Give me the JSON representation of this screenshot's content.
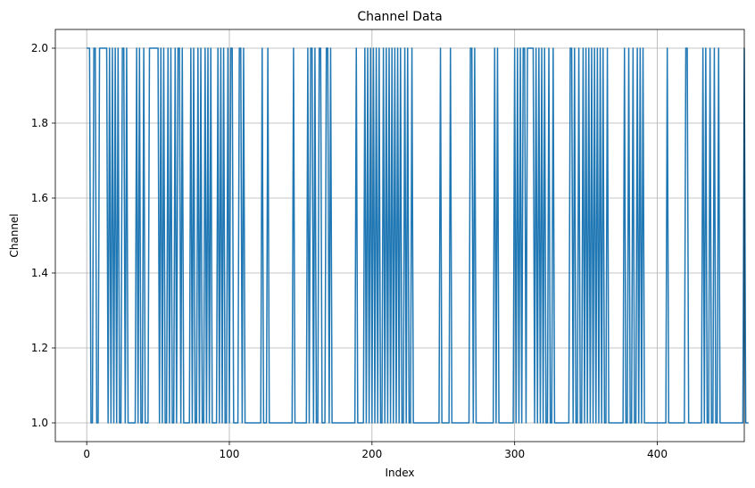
{
  "chart_data": {
    "type": "line",
    "title": "Channel Data",
    "xlabel": "Index",
    "ylabel": "Channel",
    "xlim": [
      -22,
      461
    ],
    "ylim": [
      0.95,
      2.05
    ],
    "xticks": [
      0,
      100,
      200,
      300,
      400
    ],
    "yticks": [
      1.0,
      1.2,
      1.4,
      1.6,
      1.8,
      2.0
    ],
    "xtick_labels": [
      "0",
      "100",
      "200",
      "300",
      "400"
    ],
    "ytick_labels": [
      "1.0",
      "1.2",
      "1.4",
      "1.6",
      "1.8",
      "2.0"
    ],
    "grid": true,
    "series_color": "#1f77b4",
    "series": [
      {
        "values": [
          2,
          2,
          2,
          1,
          1,
          2,
          2,
          1,
          1,
          2,
          2,
          2,
          2,
          2,
          2,
          1,
          2,
          1,
          2,
          1,
          2,
          1,
          2,
          1,
          1,
          2,
          2,
          1,
          2,
          1,
          1,
          1,
          1,
          1,
          1,
          2,
          1,
          2,
          1,
          1,
          2,
          1,
          1,
          1,
          2,
          2,
          2,
          2,
          2,
          2,
          2,
          1,
          2,
          1,
          2,
          1,
          1,
          2,
          1,
          2,
          1,
          1,
          2,
          1,
          2,
          2,
          1,
          2,
          1,
          1,
          1,
          1,
          1,
          2,
          1,
          2,
          1,
          1,
          2,
          1,
          2,
          1,
          1,
          2,
          1,
          2,
          1,
          2,
          1,
          1,
          1,
          1,
          2,
          1,
          2,
          1,
          2,
          1,
          1,
          2,
          1,
          2,
          2,
          1,
          1,
          1,
          1,
          2,
          2,
          1,
          2,
          1,
          1,
          1,
          1,
          1,
          1,
          1,
          1,
          1,
          1,
          1,
          1,
          2,
          1,
          1,
          1,
          2,
          1,
          1,
          1,
          1,
          1,
          1,
          1,
          1,
          1,
          1,
          1,
          1,
          1,
          1,
          1,
          1,
          1,
          2,
          1,
          1,
          1,
          1,
          1,
          1,
          1,
          1,
          1,
          2,
          1,
          2,
          2,
          1,
          2,
          1,
          1,
          2,
          2,
          1,
          1,
          1,
          2,
          2,
          1,
          2,
          1,
          1,
          1,
          1,
          1,
          1,
          1,
          1,
          1,
          1,
          1,
          1,
          1,
          1,
          1,
          1,
          1,
          2,
          1,
          1,
          1,
          1,
          1,
          2,
          1,
          2,
          1,
          2,
          1,
          2,
          1,
          2,
          1,
          2,
          1,
          1,
          2,
          1,
          2,
          1,
          2,
          1,
          2,
          1,
          2,
          1,
          2,
          1,
          2,
          1,
          1,
          2,
          1,
          2,
          1,
          1,
          2,
          1,
          1,
          1,
          1,
          1,
          1,
          1,
          1,
          1,
          1,
          1,
          1,
          1,
          1,
          1,
          1,
          1,
          1,
          1,
          2,
          1,
          1,
          1,
          1,
          1,
          1,
          2,
          1,
          1,
          1,
          1,
          1,
          1,
          1,
          1,
          1,
          1,
          1,
          1,
          1,
          2,
          2,
          1,
          2,
          1,
          1,
          1,
          1,
          1,
          1,
          1,
          1,
          1,
          1,
          1,
          1,
          1,
          2,
          1,
          2,
          1,
          1,
          1,
          1,
          1,
          1,
          1,
          1,
          1,
          1,
          1,
          2,
          1,
          2,
          1,
          2,
          1,
          2,
          2,
          1,
          2,
          2,
          2,
          2,
          2,
          1,
          2,
          1,
          2,
          1,
          2,
          1,
          2,
          1,
          1,
          2,
          1,
          1,
          2,
          1,
          1,
          1,
          1,
          1,
          1,
          1,
          1,
          1,
          1,
          1,
          2,
          2,
          1,
          2,
          1,
          1,
          2,
          1,
          1,
          2,
          1,
          2,
          1,
          2,
          1,
          2,
          1,
          2,
          1,
          2,
          1,
          2,
          1,
          2,
          1,
          1,
          2,
          1,
          1,
          1,
          1,
          1,
          1,
          1,
          1,
          1,
          1,
          1,
          2,
          1,
          1,
          2,
          1,
          1,
          2,
          1,
          1,
          2,
          1,
          2,
          1,
          2,
          1,
          1,
          1,
          1,
          1,
          1,
          1,
          1,
          1,
          1,
          1,
          1,
          1,
          1,
          1,
          1,
          2,
          1,
          1,
          1,
          1,
          1,
          1,
          1,
          1,
          1,
          1,
          1,
          1,
          2,
          2,
          1,
          1,
          1,
          1,
          1,
          1,
          1,
          1,
          1,
          1,
          2,
          1,
          2,
          1,
          1,
          2,
          1,
          1,
          2,
          1,
          1,
          2,
          1,
          1,
          1,
          1,
          1,
          1,
          1,
          1,
          1,
          1,
          1,
          1,
          1,
          1,
          1,
          1,
          1,
          2,
          1,
          1,
          1
        ]
      }
    ]
  }
}
